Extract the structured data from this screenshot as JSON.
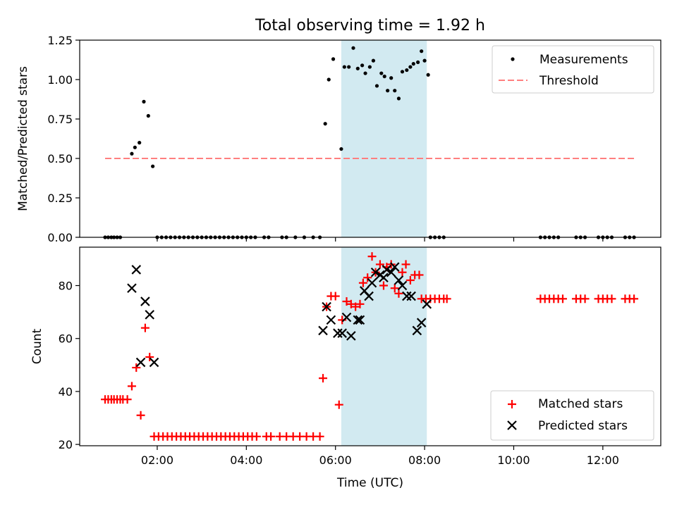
{
  "title": "Total observing time = 1.92 h",
  "xlabel": "Time (UTC)",
  "x_ticks": [
    "02:00",
    "04:00",
    "06:00",
    "08:00",
    "10:00",
    "12:00"
  ],
  "x_tick_hours": [
    2,
    4,
    6,
    8,
    10,
    12
  ],
  "xlim_hours": [
    0.26,
    13.3
  ],
  "shaded_interval_hours": [
    6.13,
    8.05
  ],
  "colors": {
    "measurements": "#000000",
    "threshold": "#ff7f7f",
    "matched": "#ff0000",
    "predicted": "#000000",
    "shade": "#add8e6"
  },
  "chart_data": [
    {
      "type": "scatter",
      "ylabel": "Matched/Predicted stars",
      "ylim": [
        0,
        1.25
      ],
      "y_ticks": [
        "0.00",
        "0.25",
        "0.50",
        "0.75",
        "1.00",
        "1.25"
      ],
      "y_tick_values": [
        0,
        0.25,
        0.5,
        0.75,
        1.0,
        1.25
      ],
      "legend": {
        "placement": "upper right",
        "entries": [
          "Measurements",
          "Threshold"
        ]
      },
      "threshold": {
        "name": "Threshold",
        "y": 0.5,
        "x_range_hours": [
          0.83,
          12.7
        ]
      },
      "series": [
        {
          "name": "Measurements",
          "points": [
            [
              0.83,
              0
            ],
            [
              0.9,
              0
            ],
            [
              0.97,
              0
            ],
            [
              1.03,
              0
            ],
            [
              1.1,
              0
            ],
            [
              1.17,
              0
            ],
            [
              1.43,
              0.53
            ],
            [
              1.5,
              0.57
            ],
            [
              1.6,
              0.6
            ],
            [
              1.7,
              0.86
            ],
            [
              1.8,
              0.77
            ],
            [
              1.9,
              0.45
            ],
            [
              2.0,
              0
            ],
            [
              2.1,
              0
            ],
            [
              2.2,
              0
            ],
            [
              2.3,
              0
            ],
            [
              2.4,
              0
            ],
            [
              2.5,
              0
            ],
            [
              2.6,
              0
            ],
            [
              2.7,
              0
            ],
            [
              2.8,
              0
            ],
            [
              2.9,
              0
            ],
            [
              3.0,
              0
            ],
            [
              3.1,
              0
            ],
            [
              3.2,
              0
            ],
            [
              3.3,
              0
            ],
            [
              3.4,
              0
            ],
            [
              3.5,
              0
            ],
            [
              3.6,
              0
            ],
            [
              3.7,
              0
            ],
            [
              3.8,
              0
            ],
            [
              3.9,
              0
            ],
            [
              4.0,
              0
            ],
            [
              4.1,
              0
            ],
            [
              4.2,
              0
            ],
            [
              4.4,
              0
            ],
            [
              4.5,
              0
            ],
            [
              4.8,
              0
            ],
            [
              4.9,
              0
            ],
            [
              5.1,
              0
            ],
            [
              5.3,
              0
            ],
            [
              5.5,
              0
            ],
            [
              5.65,
              0
            ],
            [
              5.77,
              0.72
            ],
            [
              5.85,
              1.0
            ],
            [
              5.95,
              1.13
            ],
            [
              6.13,
              0.56
            ],
            [
              6.2,
              1.08
            ],
            [
              6.3,
              1.08
            ],
            [
              6.4,
              1.2
            ],
            [
              6.5,
              1.07
            ],
            [
              6.6,
              1.09
            ],
            [
              6.67,
              1.04
            ],
            [
              6.77,
              1.08
            ],
            [
              6.85,
              1.12
            ],
            [
              6.93,
              0.96
            ],
            [
              7.03,
              1.04
            ],
            [
              7.1,
              1.02
            ],
            [
              7.17,
              0.93
            ],
            [
              7.25,
              1.01
            ],
            [
              7.33,
              0.93
            ],
            [
              7.42,
              0.88
            ],
            [
              7.5,
              1.05
            ],
            [
              7.6,
              1.06
            ],
            [
              7.68,
              1.08
            ],
            [
              7.75,
              1.1
            ],
            [
              7.85,
              1.11
            ],
            [
              7.93,
              1.18
            ],
            [
              8.0,
              1.12
            ],
            [
              8.08,
              1.03
            ],
            [
              8.13,
              0
            ],
            [
              8.23,
              0
            ],
            [
              8.33,
              0
            ],
            [
              8.43,
              0
            ],
            [
              10.6,
              0
            ],
            [
              10.7,
              0
            ],
            [
              10.8,
              0
            ],
            [
              10.9,
              0
            ],
            [
              11.0,
              0
            ],
            [
              11.4,
              0
            ],
            [
              11.5,
              0
            ],
            [
              11.6,
              0
            ],
            [
              11.9,
              0
            ],
            [
              12.0,
              0
            ],
            [
              12.1,
              0
            ],
            [
              12.2,
              0
            ],
            [
              12.5,
              0
            ],
            [
              12.6,
              0
            ],
            [
              12.7,
              0
            ]
          ]
        }
      ]
    },
    {
      "type": "scatter",
      "ylabel": "Count",
      "ylim": [
        19.5,
        94.5
      ],
      "y_ticks": [
        "20",
        "40",
        "60",
        "80"
      ],
      "y_tick_values": [
        20,
        40,
        60,
        80
      ],
      "legend": {
        "placement": "lower right",
        "entries": [
          "Matched stars",
          "Predicted stars"
        ]
      },
      "series": [
        {
          "name": "Matched stars",
          "marker": "plus",
          "points": [
            [
              0.83,
              37
            ],
            [
              0.9,
              37
            ],
            [
              0.97,
              37
            ],
            [
              1.03,
              37
            ],
            [
              1.1,
              37
            ],
            [
              1.17,
              37
            ],
            [
              1.23,
              37
            ],
            [
              1.33,
              37
            ],
            [
              1.43,
              42
            ],
            [
              1.53,
              49
            ],
            [
              1.63,
              31
            ],
            [
              1.73,
              64
            ],
            [
              1.83,
              53
            ],
            [
              1.93,
              23
            ],
            [
              2.03,
              23
            ],
            [
              2.13,
              23
            ],
            [
              2.23,
              23
            ],
            [
              2.33,
              23
            ],
            [
              2.43,
              23
            ],
            [
              2.53,
              23
            ],
            [
              2.63,
              23
            ],
            [
              2.73,
              23
            ],
            [
              2.83,
              23
            ],
            [
              2.93,
              23
            ],
            [
              3.03,
              23
            ],
            [
              3.13,
              23
            ],
            [
              3.23,
              23
            ],
            [
              3.33,
              23
            ],
            [
              3.43,
              23
            ],
            [
              3.53,
              23
            ],
            [
              3.63,
              23
            ],
            [
              3.73,
              23
            ],
            [
              3.83,
              23
            ],
            [
              3.93,
              23
            ],
            [
              4.03,
              23
            ],
            [
              4.13,
              23
            ],
            [
              4.23,
              23
            ],
            [
              4.45,
              23
            ],
            [
              4.55,
              23
            ],
            [
              4.75,
              23
            ],
            [
              4.9,
              23
            ],
            [
              5.05,
              23
            ],
            [
              5.2,
              23
            ],
            [
              5.35,
              23
            ],
            [
              5.5,
              23
            ],
            [
              5.65,
              23
            ],
            [
              5.72,
              45
            ],
            [
              5.8,
              72
            ],
            [
              5.9,
              76
            ],
            [
              6.0,
              76
            ],
            [
              6.08,
              35
            ],
            [
              6.15,
              67
            ],
            [
              6.25,
              74
            ],
            [
              6.35,
              73
            ],
            [
              6.45,
              72
            ],
            [
              6.55,
              73
            ],
            [
              6.62,
              81
            ],
            [
              6.72,
              83
            ],
            [
              6.82,
              91
            ],
            [
              6.9,
              85
            ],
            [
              7.0,
              88
            ],
            [
              7.08,
              80
            ],
            [
              7.15,
              87
            ],
            [
              7.25,
              88
            ],
            [
              7.33,
              79
            ],
            [
              7.42,
              77
            ],
            [
              7.5,
              85
            ],
            [
              7.58,
              88
            ],
            [
              7.68,
              82
            ],
            [
              7.78,
              84
            ],
            [
              7.88,
              84
            ],
            [
              7.93,
              75
            ],
            [
              8.03,
              75
            ],
            [
              8.13,
              75
            ],
            [
              8.23,
              75
            ],
            [
              8.33,
              75
            ],
            [
              8.43,
              75
            ],
            [
              8.5,
              75
            ],
            [
              10.6,
              75
            ],
            [
              10.7,
              75
            ],
            [
              10.8,
              75
            ],
            [
              10.9,
              75
            ],
            [
              11.0,
              75
            ],
            [
              11.1,
              75
            ],
            [
              11.4,
              75
            ],
            [
              11.5,
              75
            ],
            [
              11.6,
              75
            ],
            [
              11.9,
              75
            ],
            [
              12.0,
              75
            ],
            [
              12.1,
              75
            ],
            [
              12.2,
              75
            ],
            [
              12.5,
              75
            ],
            [
              12.6,
              75
            ],
            [
              12.7,
              75
            ]
          ]
        },
        {
          "name": "Predicted stars",
          "marker": "x",
          "points": [
            [
              1.43,
              79
            ],
            [
              1.53,
              86
            ],
            [
              1.63,
              51
            ],
            [
              1.73,
              74
            ],
            [
              1.83,
              69
            ],
            [
              1.93,
              51
            ],
            [
              5.72,
              63
            ],
            [
              5.8,
              72
            ],
            [
              5.9,
              67
            ],
            [
              6.05,
              62
            ],
            [
              6.15,
              62
            ],
            [
              6.25,
              68
            ],
            [
              6.35,
              61
            ],
            [
              6.5,
              67
            ],
            [
              6.55,
              67
            ],
            [
              6.65,
              78
            ],
            [
              6.75,
              76
            ],
            [
              6.82,
              81
            ],
            [
              6.9,
              85
            ],
            [
              7.0,
              84
            ],
            [
              7.08,
              83
            ],
            [
              7.15,
              86
            ],
            [
              7.25,
              85
            ],
            [
              7.33,
              87
            ],
            [
              7.42,
              82
            ],
            [
              7.5,
              80
            ],
            [
              7.6,
              76
            ],
            [
              7.7,
              76
            ],
            [
              7.83,
              63
            ],
            [
              7.93,
              66
            ],
            [
              8.05,
              73
            ]
          ]
        }
      ]
    }
  ]
}
